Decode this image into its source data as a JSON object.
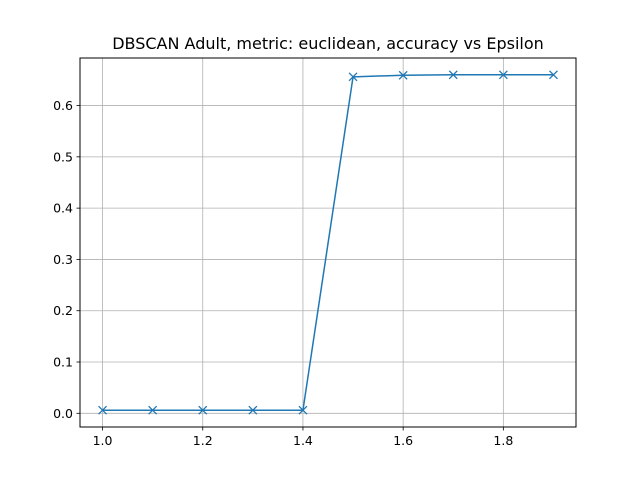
{
  "chart_data": {
    "type": "line",
    "title": "DBSCAN Adult, metric: euclidean, accuracy vs Epsilon",
    "xlabel": "",
    "ylabel": "",
    "x": [
      1.0,
      1.1,
      1.2,
      1.3,
      1.4,
      1.5,
      1.6,
      1.7,
      1.8,
      1.9
    ],
    "series": [
      {
        "values": [
          0.006,
          0.006,
          0.006,
          0.006,
          0.006,
          0.656,
          0.659,
          0.66,
          0.66,
          0.66
        ],
        "color": "#1f77b4",
        "marker": "x"
      }
    ],
    "xlim": [
      0.955,
      1.945
    ],
    "ylim": [
      -0.0267,
      0.6927
    ],
    "xticks": [
      1.0,
      1.2,
      1.4,
      1.6,
      1.8
    ],
    "xtick_labels": [
      "1.0",
      "1.2",
      "1.4",
      "1.6",
      "1.8"
    ],
    "yticks": [
      0.0,
      0.1,
      0.2,
      0.3,
      0.4,
      0.5,
      0.6
    ],
    "ytick_labels": [
      "0.0",
      "0.1",
      "0.2",
      "0.3",
      "0.4",
      "0.5",
      "0.6"
    ],
    "grid": true,
    "colors": {
      "grid": "#b0b0b0",
      "axes": "#000000"
    }
  }
}
